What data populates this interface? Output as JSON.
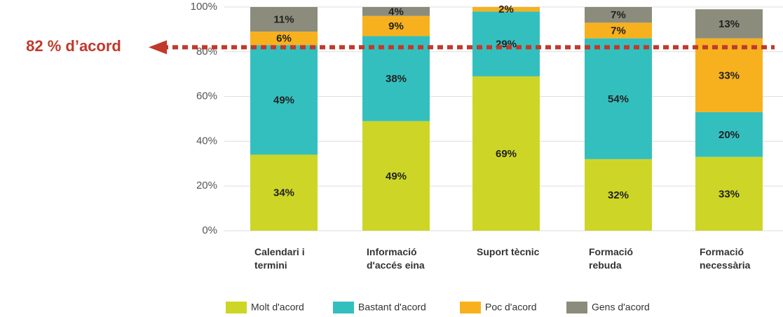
{
  "chart_data": {
    "type": "stacked_bar",
    "categories": [
      "Calendari i termini",
      "Informació d'accés eina",
      "Suport tècnic",
      "Formació rebuda",
      "Formació necessària"
    ],
    "series": [
      {
        "name": "Molt d'acord",
        "color": "#cdd626",
        "values": [
          34,
          49,
          69,
          32,
          33
        ],
        "value_labels": [
          "34%",
          "49%",
          "69%",
          "32%",
          "33%"
        ]
      },
      {
        "name": "Bastant d'acord",
        "color": "#34bfbf",
        "values": [
          49,
          38,
          29,
          54,
          20
        ],
        "value_labels": [
          "49%",
          "38%",
          "29%",
          "54%",
          "20%"
        ]
      },
      {
        "name": "Poc d'acord",
        "color": "#f7b11e",
        "values": [
          6,
          9,
          2,
          7,
          33
        ],
        "value_labels": [
          "6%",
          "9%",
          "2%",
          "7%",
          "33%"
        ]
      },
      {
        "name": "Gens d'acord",
        "color": "#8c8c7c",
        "values": [
          11,
          4,
          null,
          7,
          13
        ],
        "value_labels": [
          "11%",
          "4%",
          null,
          "7%",
          "13%"
        ]
      }
    ],
    "ylim": [
      0,
      100
    ],
    "yticks": [
      {
        "value": 0,
        "label": "0%"
      },
      {
        "value": 20,
        "label": "20%"
      },
      {
        "value": 40,
        "label": "40%"
      },
      {
        "value": 60,
        "label": "60%"
      },
      {
        "value": 80,
        "label": "80%"
      },
      {
        "value": 100,
        "label": "100%"
      }
    ],
    "grid": true,
    "annotation": {
      "text": "82 % d’acord",
      "value": 82,
      "color": "#c0392b"
    }
  }
}
